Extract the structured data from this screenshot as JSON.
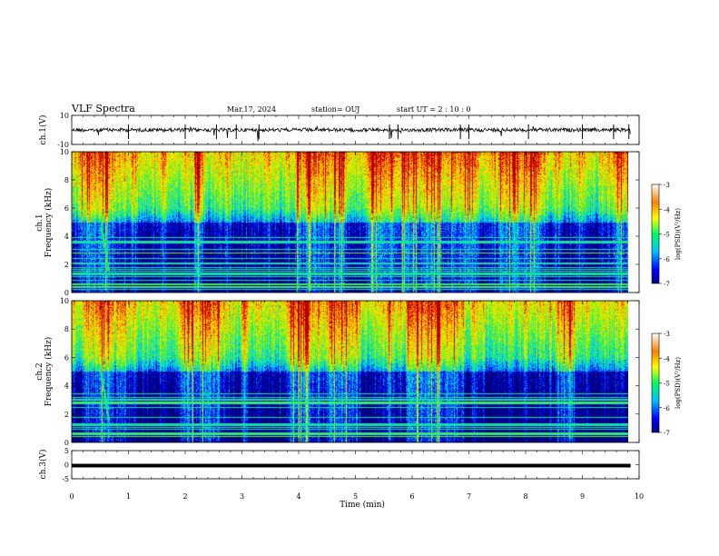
{
  "header": {
    "title": "VLF Spectra",
    "date": "Mar.17, 2024",
    "station": "station= OUJ",
    "start": "start  UT =   2 : 10 : 0"
  },
  "chart_data": [
    {
      "type": "line",
      "panel": "waveform-ch1",
      "ylabel": "ch.1(V)",
      "ylim": [
        -10,
        10
      ],
      "yticks": [
        "10",
        "-10"
      ],
      "xlim": [
        0,
        10
      ],
      "color": "#000000"
    },
    {
      "type": "heatmap",
      "panel": "spectrogram-ch1",
      "ylabel": "ch.1\nFrequency (kHz)",
      "ylabel_line1": "ch.1",
      "ylabel_line2": "Frequency (kHz)",
      "ylim": [
        0,
        10
      ],
      "yticks": [
        "0",
        "2",
        "4",
        "6",
        "8",
        "10"
      ],
      "xlim": [
        0,
        9.8
      ],
      "colorbar": {
        "label": "log(PSD)(V²/Hz)",
        "range": [
          -7,
          -3
        ],
        "ticks": [
          "-3",
          "-4",
          "-5",
          "-6",
          "-7"
        ]
      }
    },
    {
      "type": "heatmap",
      "panel": "spectrogram-ch2",
      "ylabel_line1": "ch.2",
      "ylabel_line2": "Frequency (kHz)",
      "ylim": [
        0,
        10
      ],
      "yticks": [
        "0",
        "2",
        "4",
        "6",
        "8",
        "10"
      ],
      "xlim": [
        0,
        9.8
      ],
      "colorbar": {
        "label": "log(PSD)(V²/Hz)",
        "range": [
          -7,
          -3
        ],
        "ticks": [
          "-3",
          "-4",
          "-5",
          "-6",
          "-7"
        ]
      }
    },
    {
      "type": "line",
      "panel": "waveform-ch3",
      "ylabel": "ch.3(V)",
      "ylim": [
        -5,
        5
      ],
      "yticks": [
        "5",
        "0",
        "-5"
      ],
      "xlim": [
        0,
        10
      ],
      "y": 0,
      "color": "#000000"
    }
  ],
  "xaxis": {
    "label": "Time (min)",
    "range": [
      0,
      10
    ],
    "ticks": [
      "0",
      "1",
      "2",
      "3",
      "4",
      "5",
      "6",
      "7",
      "8",
      "9",
      "10"
    ]
  }
}
